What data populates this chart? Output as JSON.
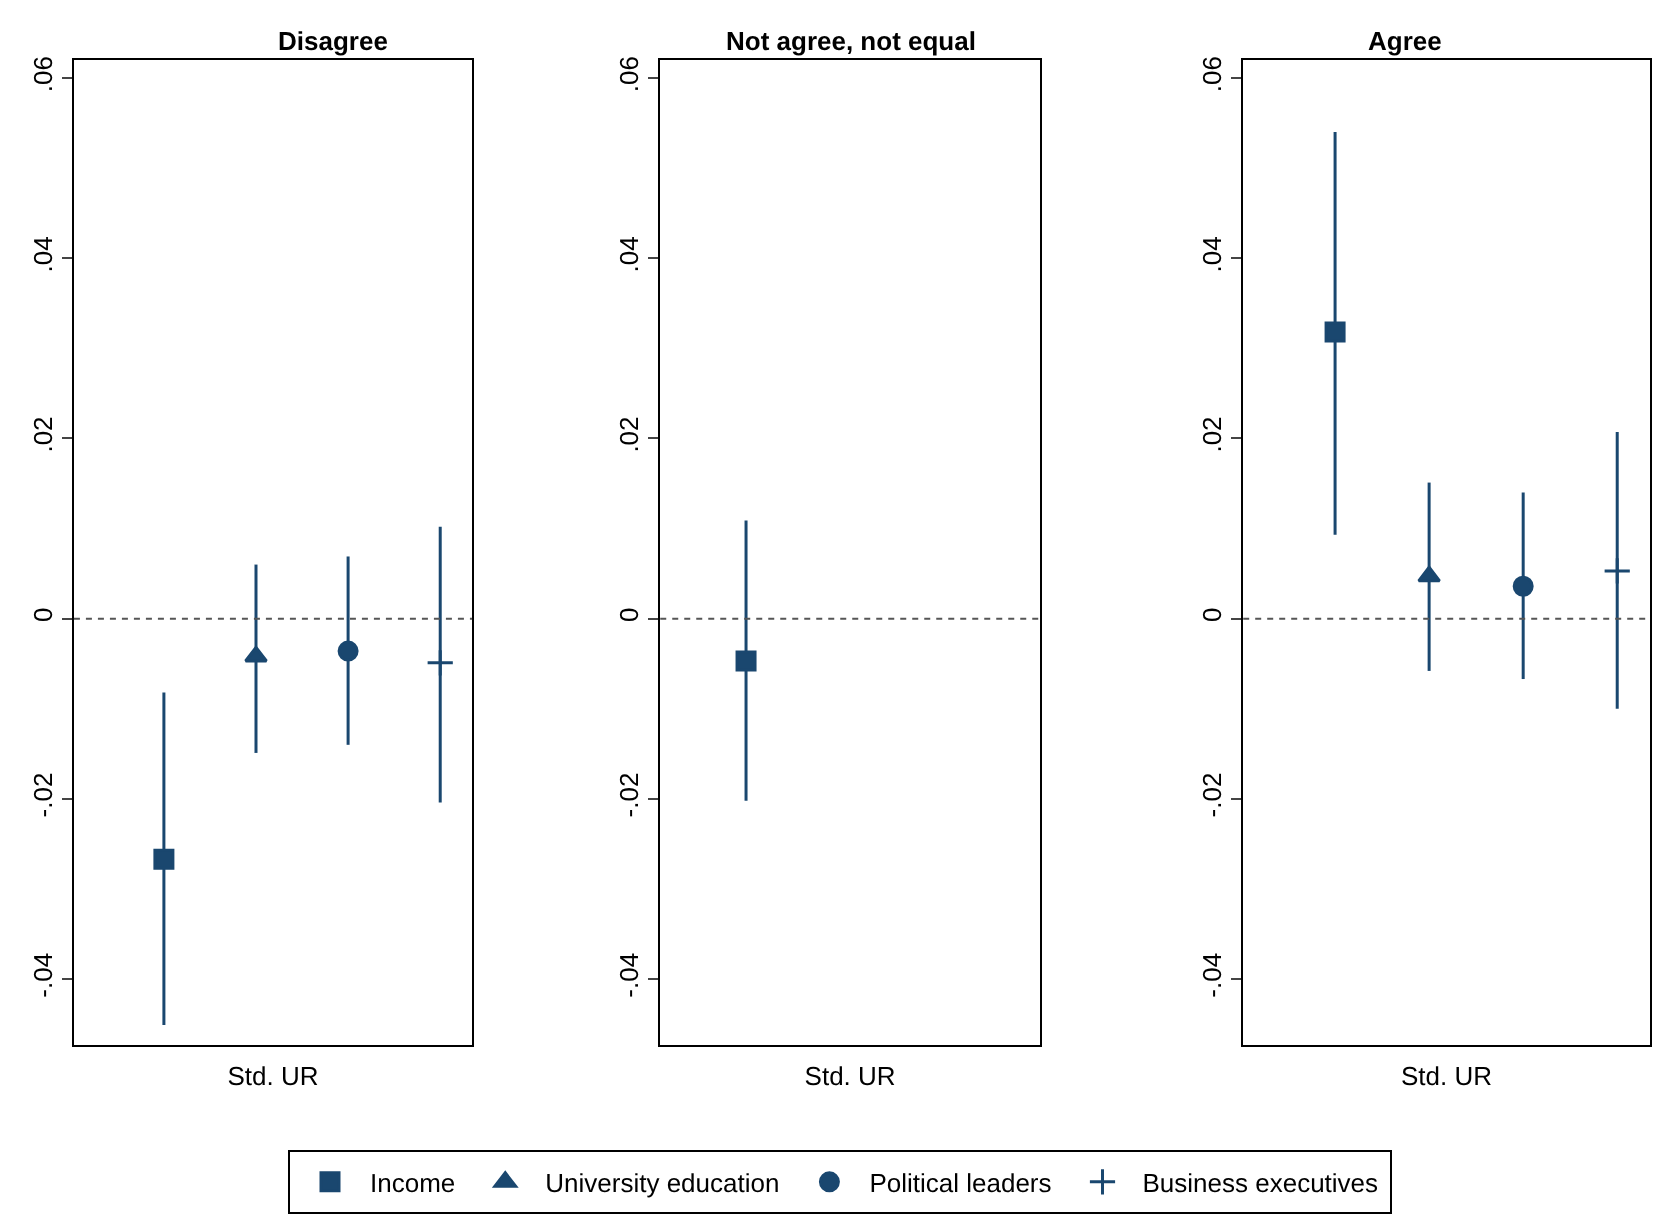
{
  "chart_data": [
    {
      "type": "scatter",
      "title": "Disagree",
      "xlabel": "Std. UR",
      "categories": [
        null,
        null,
        null,
        null
      ],
      "ylim": [
        -0.0473,
        0.062
      ],
      "yticks": [
        {
          "value": -0.04,
          "label": "-.04"
        },
        {
          "value": -0.02,
          "label": "-.02"
        },
        0,
        {
          "value": 0.02,
          "label": ".02"
        },
        {
          "value": 0.04,
          "label": ".04"
        },
        {
          "value": 0.06,
          "label": ".06"
        }
      ],
      "legend": "bottom",
      "ref_lines": [
        {
          "axis": "y",
          "value": 0,
          "line_style": "dotted",
          "color": "#555555"
        }
      ],
      "series": [
        {
          "name": "Income",
          "color": "#1a476f",
          "marker": "square",
          "values": [
            -0.0267,
            null,
            null,
            null
          ],
          "errors": [
            [
              -0.0451,
              -0.0082
            ],
            null,
            null,
            null
          ]
        },
        {
          "name": "University education",
          "color": "#1a476f",
          "marker": "triangle",
          "values": [
            null,
            -0.0042,
            null,
            null
          ],
          "errors": [
            null,
            [
              -0.0149,
              0.006
            ],
            null,
            null
          ]
        },
        {
          "name": "Political leaders",
          "color": "#1a476f",
          "marker": "circle",
          "values": [
            null,
            null,
            -0.0036,
            null
          ],
          "errors": [
            null,
            null,
            [
              -0.014,
              0.0069
            ],
            null
          ]
        },
        {
          "name": "Business executives",
          "color": "#1a476f",
          "marker": "cross",
          "values": [
            null,
            null,
            null,
            -0.0049
          ],
          "errors": [
            null,
            null,
            null,
            [
              -0.0204,
              0.0102
            ]
          ]
        }
      ]
    },
    {
      "type": "scatter",
      "title": "Not agree, not equal",
      "xlabel": "Std. UR",
      "categories": [
        null,
        null,
        null,
        null
      ],
      "ylim": [
        -0.0473,
        0.062
      ],
      "yticks": [
        {
          "value": -0.04,
          "label": "-.04"
        },
        {
          "value": -0.02,
          "label": "-.02"
        },
        0,
        {
          "value": 0.02,
          "label": ".02"
        },
        {
          "value": 0.04,
          "label": ".04"
        },
        {
          "value": 0.06,
          "label": ".06"
        }
      ],
      "ref_lines": [
        {
          "axis": "y",
          "value": 0,
          "line_style": "dotted",
          "color": "#555555"
        }
      ],
      "series": [
        {
          "color": "#1a476f",
          "marker": "square",
          "values": [
            -0.0047,
            null,
            null,
            null
          ],
          "errors": [
            [
              -0.0202,
              0.0109
            ],
            null,
            null,
            null
          ]
        }
      ]
    },
    {
      "type": "scatter",
      "title": "Agree",
      "xlabel": "Std. UR",
      "categories": [
        null,
        null,
        null,
        null
      ],
      "ylim": [
        -0.0473,
        0.062
      ],
      "yticks": [
        {
          "value": -0.04,
          "label": "-.04"
        },
        {
          "value": -0.02,
          "label": "-.02"
        },
        0,
        {
          "value": 0.02,
          "label": ".02"
        },
        {
          "value": 0.04,
          "label": ".04"
        },
        {
          "value": 0.06,
          "label": ".06"
        }
      ],
      "ref_lines": [
        {
          "axis": "y",
          "value": 0,
          "line_style": "dotted",
          "color": "#555555"
        }
      ],
      "series": [
        {
          "color": "#1a476f",
          "marker": "square",
          "values": [
            0.0318,
            null,
            null,
            null
          ],
          "errors": [
            [
              0.0093,
              0.054
            ],
            null,
            null,
            null
          ]
        },
        {
          "color": "#1a476f",
          "marker": "triangle",
          "values": [
            null,
            0.0047,
            null,
            null
          ],
          "errors": [
            null,
            [
              -0.0058,
              0.0151
            ],
            null,
            null
          ]
        },
        {
          "color": "#1a476f",
          "marker": "circle",
          "values": [
            null,
            null,
            0.0036,
            null
          ],
          "errors": [
            null,
            null,
            [
              -0.0067,
              0.014
            ],
            null
          ]
        },
        {
          "color": "#1a476f",
          "marker": "cross",
          "values": [
            null,
            null,
            null,
            0.0053
          ],
          "errors": [
            null,
            null,
            null,
            [
              -0.01,
              0.0207
            ]
          ]
        }
      ]
    }
  ]
}
